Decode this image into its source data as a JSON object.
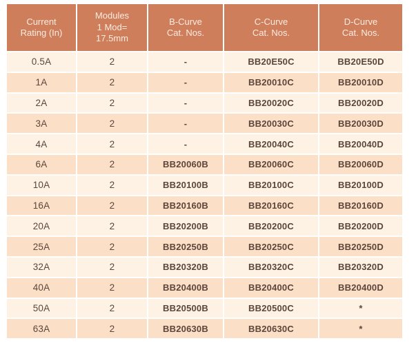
{
  "colors": {
    "header_bg": "#cf7e5b",
    "header_text": "#fbece1",
    "row_light": "#fdf2e4",
    "row_dark": "#fbdfc7",
    "body_text": "#5c463c",
    "separator": "#ffffff"
  },
  "table": {
    "columns": [
      {
        "id": "rating",
        "lines": [
          "Current",
          "Rating (In)"
        ]
      },
      {
        "id": "modules",
        "lines": [
          "Modules",
          "1 Mod=",
          "17.5mm"
        ]
      },
      {
        "id": "b_curve",
        "lines": [
          "B-Curve",
          "Cat. Nos."
        ]
      },
      {
        "id": "c_curve",
        "lines": [
          "C-Curve",
          "Cat. Nos."
        ]
      },
      {
        "id": "d_curve",
        "lines": [
          "D-Curve",
          "Cat. Nos."
        ]
      }
    ],
    "rows": [
      {
        "rating": "0.5A",
        "modules": "2",
        "b_curve": "-",
        "c_curve": "BB20E50C",
        "d_curve": "BB20E50D"
      },
      {
        "rating": "1A",
        "modules": "2",
        "b_curve": "-",
        "c_curve": "BB20010C",
        "d_curve": "BB20010D"
      },
      {
        "rating": "2A",
        "modules": "2",
        "b_curve": "-",
        "c_curve": "BB20020C",
        "d_curve": "BB20020D"
      },
      {
        "rating": "3A",
        "modules": "2",
        "b_curve": "-",
        "c_curve": "BB20030C",
        "d_curve": "BB20030D"
      },
      {
        "rating": "4A",
        "modules": "2",
        "b_curve": "-",
        "c_curve": "BB20040C",
        "d_curve": "BB20040D"
      },
      {
        "rating": "6A",
        "modules": "2",
        "b_curve": "BB20060B",
        "c_curve": "BB20060C",
        "d_curve": "BB20060D"
      },
      {
        "rating": "10A",
        "modules": "2",
        "b_curve": "BB20100B",
        "c_curve": "BB20100C",
        "d_curve": "BB20100D"
      },
      {
        "rating": "16A",
        "modules": "2",
        "b_curve": "BB20160B",
        "c_curve": "BB20160C",
        "d_curve": "BB20160D"
      },
      {
        "rating": "20A",
        "modules": "2",
        "b_curve": "BB20200B",
        "c_curve": "BB20200C",
        "d_curve": "BB20200D"
      },
      {
        "rating": "25A",
        "modules": "2",
        "b_curve": "BB20250B",
        "c_curve": "BB20250C",
        "d_curve": "BB20250D"
      },
      {
        "rating": "32A",
        "modules": "2",
        "b_curve": "BB20320B",
        "c_curve": "BB20320C",
        "d_curve": "BB20320D"
      },
      {
        "rating": "40A",
        "modules": "2",
        "b_curve": "BB20400B",
        "c_curve": "BB20400C",
        "d_curve": "BB20400D"
      },
      {
        "rating": "50A",
        "modules": "2",
        "b_curve": "BB20500B",
        "c_curve": "BB20500C",
        "d_curve": "*"
      },
      {
        "rating": "63A",
        "modules": "2",
        "b_curve": "BB20630B",
        "c_curve": "BB20630C",
        "d_curve": "*"
      }
    ]
  }
}
